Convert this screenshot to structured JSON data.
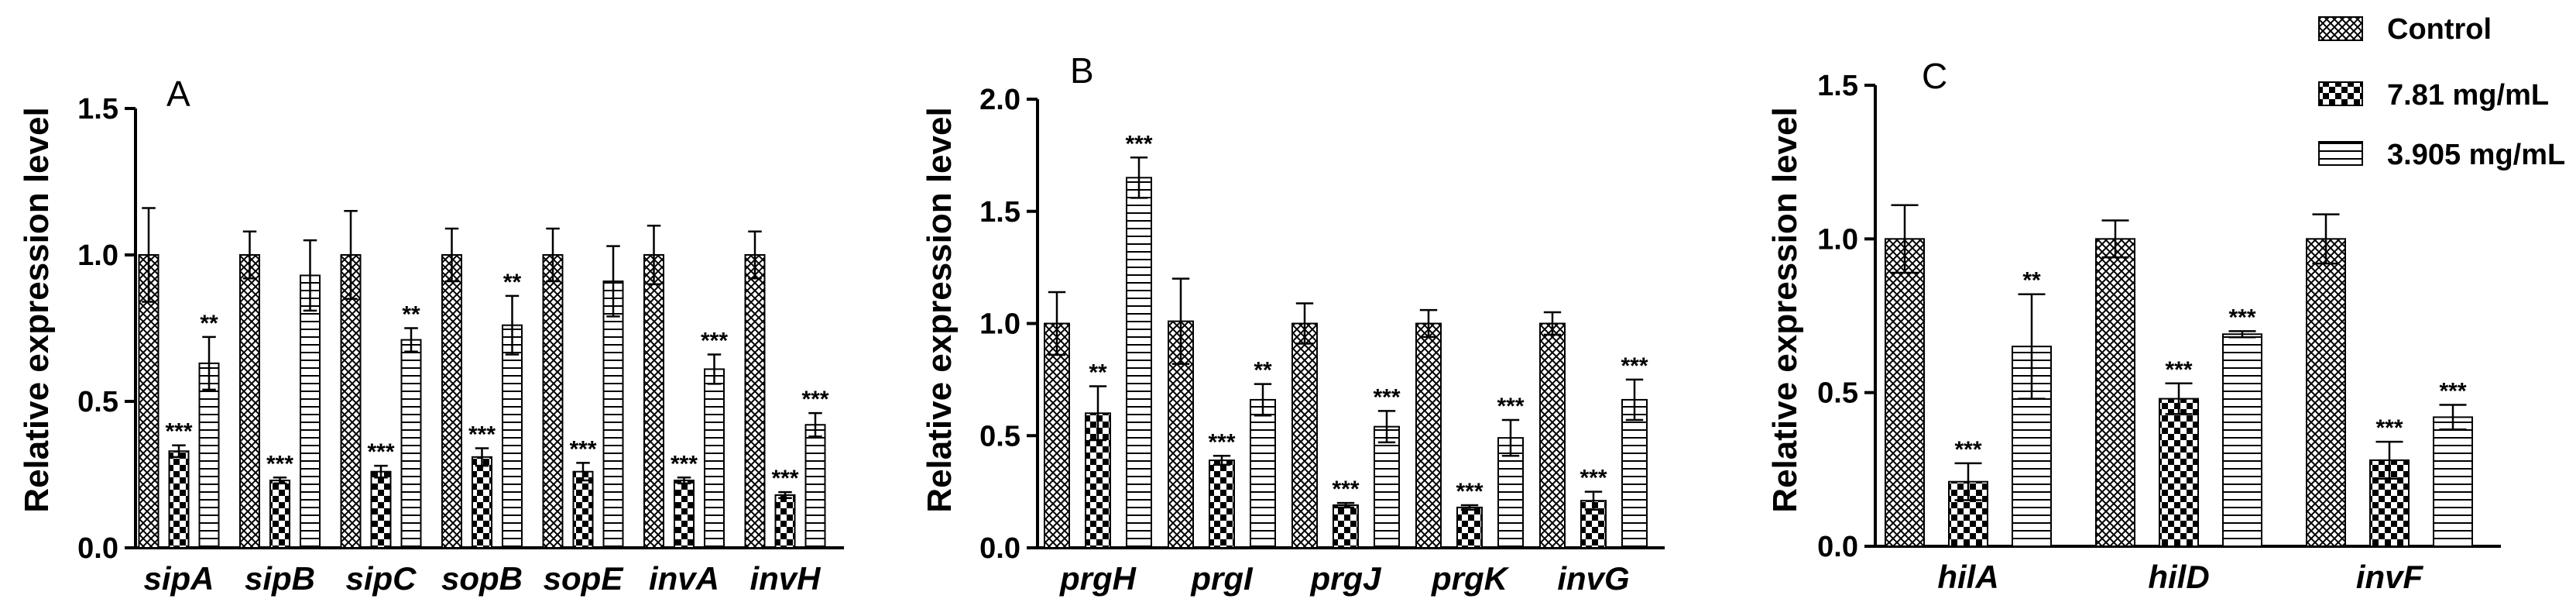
{
  "legend": [
    {
      "name": "Control",
      "pattern": "crosshatch"
    },
    {
      "name": "7.81 mg/mL",
      "pattern": "checker"
    },
    {
      "name": "3.905 mg/mL",
      "pattern": "hlines"
    }
  ],
  "chart_data": [
    {
      "panel": "A",
      "type": "bar",
      "ylabel": "Relative expression level",
      "ylim": [
        0,
        1.5
      ],
      "yticks": [
        "0.0",
        "0.5",
        "1.0",
        "1.5"
      ],
      "categories": [
        "sipA",
        "sipB",
        "sipC",
        "sopB",
        "sopE",
        "invA",
        "invH"
      ],
      "series": [
        {
          "name": "Control",
          "values": [
            1.0,
            1.0,
            1.0,
            1.0,
            1.0,
            1.0,
            1.0
          ],
          "errors": [
            0.16,
            0.08,
            0.15,
            0.09,
            0.09,
            0.1,
            0.08
          ],
          "sig": [
            "",
            "",
            "",
            "",
            "",
            "",
            ""
          ]
        },
        {
          "name": "7.81 mg/mL",
          "values": [
            0.33,
            0.23,
            0.26,
            0.31,
            0.26,
            0.23,
            0.18
          ],
          "errors": [
            0.02,
            0.01,
            0.02,
            0.03,
            0.03,
            0.01,
            0.01
          ],
          "sig": [
            "***",
            "***",
            "***",
            "***",
            "***",
            "***",
            "***"
          ]
        },
        {
          "name": "3.905 mg/mL",
          "values": [
            0.63,
            0.93,
            0.71,
            0.76,
            0.91,
            0.61,
            0.42
          ],
          "errors": [
            0.09,
            0.12,
            0.04,
            0.1,
            0.12,
            0.05,
            0.04
          ],
          "sig": [
            "**",
            "",
            "**",
            "**",
            "",
            "***",
            "***"
          ]
        }
      ]
    },
    {
      "panel": "B",
      "type": "bar",
      "ylabel": "Relative expression level",
      "ylim": [
        0,
        2.0
      ],
      "yticks": [
        "0.0",
        "0.5",
        "1.0",
        "1.5",
        "2.0"
      ],
      "categories": [
        "prgH",
        "prgI",
        "prgJ",
        "prgK",
        "invG"
      ],
      "series": [
        {
          "name": "Control",
          "values": [
            1.0,
            1.01,
            1.0,
            1.0,
            1.0
          ],
          "errors": [
            0.14,
            0.19,
            0.09,
            0.06,
            0.05
          ],
          "sig": [
            "",
            "",
            "",
            "",
            ""
          ]
        },
        {
          "name": "7.81 mg/mL",
          "values": [
            0.6,
            0.39,
            0.19,
            0.18,
            0.21
          ],
          "errors": [
            0.12,
            0.02,
            0.01,
            0.01,
            0.04
          ],
          "sig": [
            "**",
            "***",
            "***",
            "***",
            "***"
          ]
        },
        {
          "name": "3.905 mg/mL",
          "values": [
            1.65,
            0.66,
            0.54,
            0.49,
            0.66
          ],
          "errors": [
            0.09,
            0.07,
            0.07,
            0.08,
            0.09
          ],
          "sig": [
            "***",
            "**",
            "***",
            "***",
            "***"
          ]
        }
      ]
    },
    {
      "panel": "C",
      "type": "bar",
      "ylabel": "Relative expression level",
      "ylim": [
        0,
        1.5
      ],
      "yticks": [
        "0.0",
        "0.5",
        "1.0",
        "1.5"
      ],
      "categories": [
        "hilA",
        "hilD",
        "invF"
      ],
      "series": [
        {
          "name": "Control",
          "values": [
            1.0,
            1.0,
            1.0
          ],
          "errors": [
            0.11,
            0.06,
            0.08
          ],
          "sig": [
            "",
            "",
            ""
          ]
        },
        {
          "name": "7.81 mg/mL",
          "values": [
            0.21,
            0.48,
            0.28
          ],
          "errors": [
            0.06,
            0.05,
            0.06
          ],
          "sig": [
            "***",
            "***",
            "***"
          ]
        },
        {
          "name": "3.905 mg/mL",
          "values": [
            0.65,
            0.69,
            0.42
          ],
          "errors": [
            0.17,
            0.01,
            0.04
          ],
          "sig": [
            "**",
            "***",
            "***"
          ]
        }
      ]
    }
  ]
}
